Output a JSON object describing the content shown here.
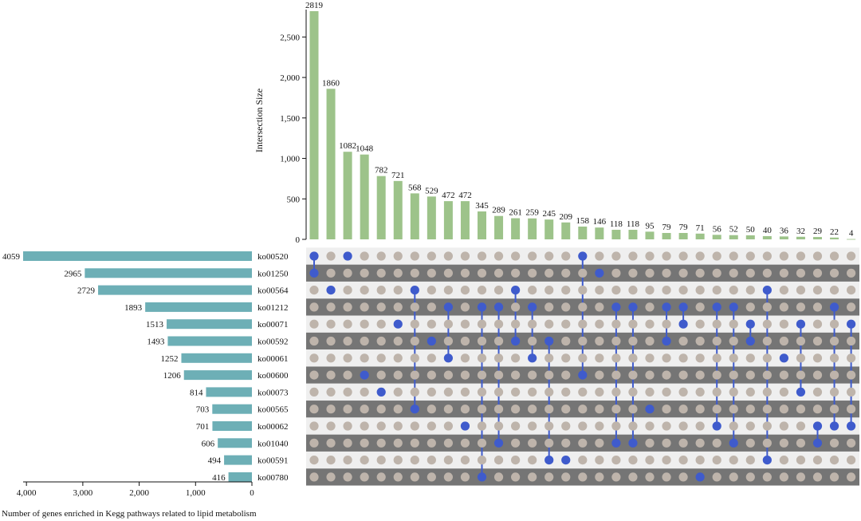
{
  "chart_data": {
    "type": "upset",
    "ylabel": "Intersection Size",
    "set_axis_label": "Number of genes enriched in Kegg pathways related to lipid metabolism",
    "intersection_axis": {
      "ylim": [
        0,
        2819
      ],
      "ticks": [
        0,
        500,
        1000,
        1500,
        2000,
        2500
      ],
      "tick_labels": [
        "0",
        "500",
        "1,000",
        "1,500",
        "2,000",
        "2,500"
      ]
    },
    "set_axis": {
      "xlim": [
        0,
        4059
      ],
      "ticks": [
        4000,
        3000,
        2000,
        1000,
        0
      ],
      "tick_labels": [
        "4,000",
        "3,000",
        "2,000",
        "1,000",
        "0"
      ]
    },
    "sets": [
      {
        "name": "ko00520",
        "size": 4059
      },
      {
        "name": "ko01250",
        "size": 2965
      },
      {
        "name": "ko00564",
        "size": 2729
      },
      {
        "name": "ko01212",
        "size": 1893
      },
      {
        "name": "ko00071",
        "size": 1513
      },
      {
        "name": "ko00592",
        "size": 1493
      },
      {
        "name": "ko00061",
        "size": 1252
      },
      {
        "name": "ko00600",
        "size": 1206
      },
      {
        "name": "ko00073",
        "size": 814
      },
      {
        "name": "ko00565",
        "size": 703
      },
      {
        "name": "ko00062",
        "size": 701
      },
      {
        "name": "ko01040",
        "size": 606
      },
      {
        "name": "ko00591",
        "size": 494
      },
      {
        "name": "ko00780",
        "size": 416
      }
    ],
    "intersections": [
      {
        "size": 2819,
        "sets": [
          "ko00520",
          "ko01250"
        ]
      },
      {
        "size": 1860,
        "sets": [
          "ko00564"
        ]
      },
      {
        "size": 1082,
        "sets": [
          "ko00520"
        ]
      },
      {
        "size": 1048,
        "sets": [
          "ko00600"
        ]
      },
      {
        "size": 782,
        "sets": [
          "ko00073"
        ]
      },
      {
        "size": 721,
        "sets": [
          "ko00071"
        ]
      },
      {
        "size": 568,
        "sets": [
          "ko00564",
          "ko00565"
        ]
      },
      {
        "size": 529,
        "sets": [
          "ko00592"
        ]
      },
      {
        "size": 472,
        "sets": [
          "ko01212",
          "ko00061"
        ]
      },
      {
        "size": 472,
        "sets": [
          "ko00062"
        ]
      },
      {
        "size": 345,
        "sets": [
          "ko01212",
          "ko00780"
        ]
      },
      {
        "size": 289,
        "sets": [
          "ko01212",
          "ko01040"
        ]
      },
      {
        "size": 261,
        "sets": [
          "ko00564",
          "ko00592"
        ]
      },
      {
        "size": 259,
        "sets": [
          "ko01212",
          "ko00061"
        ]
      },
      {
        "size": 245,
        "sets": [
          "ko00592",
          "ko00591"
        ]
      },
      {
        "size": 209,
        "sets": [
          "ko00591"
        ]
      },
      {
        "size": 158,
        "sets": [
          "ko00520",
          "ko00600"
        ]
      },
      {
        "size": 146,
        "sets": [
          "ko01250"
        ]
      },
      {
        "size": 118,
        "sets": [
          "ko01212",
          "ko01040"
        ]
      },
      {
        "size": 118,
        "sets": [
          "ko01212",
          "ko01040"
        ]
      },
      {
        "size": 95,
        "sets": [
          "ko00565"
        ]
      },
      {
        "size": 79,
        "sets": [
          "ko01212",
          "ko00592"
        ]
      },
      {
        "size": 79,
        "sets": [
          "ko01212",
          "ko00071"
        ]
      },
      {
        "size": 71,
        "sets": [
          "ko00780"
        ]
      },
      {
        "size": 56,
        "sets": [
          "ko01212",
          "ko00062"
        ]
      },
      {
        "size": 52,
        "sets": [
          "ko01212",
          "ko01040"
        ]
      },
      {
        "size": 50,
        "sets": [
          "ko00071",
          "ko00592"
        ]
      },
      {
        "size": 40,
        "sets": [
          "ko00564",
          "ko00591"
        ]
      },
      {
        "size": 36,
        "sets": [
          "ko00061"
        ]
      },
      {
        "size": 32,
        "sets": [
          "ko00071",
          "ko00073"
        ]
      },
      {
        "size": 29,
        "sets": [
          "ko00062",
          "ko01040"
        ]
      },
      {
        "size": 22,
        "sets": [
          "ko01212",
          "ko00062"
        ]
      },
      {
        "size": 4,
        "sets": [
          "ko00071",
          "ko00062"
        ]
      }
    ],
    "colors": {
      "intersection_bar": "#9dc38a",
      "set_bar": "#6dafb6",
      "dot_active": "#3f5bcc",
      "dot_inactive": "#beb4ab",
      "row_light": "#efefef",
      "row_dark": "#757575"
    }
  }
}
